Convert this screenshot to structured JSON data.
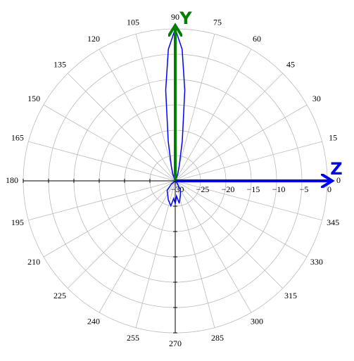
{
  "chart_data": {
    "type": "polar",
    "x": [
      0,
      10,
      20,
      30,
      40,
      50,
      60,
      65,
      70,
      75,
      80,
      84,
      87,
      90,
      93,
      96,
      100,
      105,
      110,
      120,
      140,
      160,
      180,
      200,
      220,
      230,
      240,
      250,
      260,
      265,
      270,
      275,
      280,
      290,
      300,
      310,
      330,
      350,
      360
    ],
    "values": [
      -30,
      -30,
      -30,
      -30,
      -30,
      -30,
      -30,
      -29.5,
      -28.5,
      -27,
      -22,
      -12,
      -4,
      0,
      -4,
      -12,
      -22,
      -27,
      -28.5,
      -30,
      -30,
      -30,
      -30,
      -30,
      -29,
      -27.5,
      -27,
      -26,
      -25,
      -26.5,
      -25.5,
      -27,
      -25.5,
      -27,
      -28,
      -29.5,
      -30,
      -30,
      -30
    ],
    "color": "#0000ff",
    "rlim": [
      -30,
      0
    ],
    "rticks": [
      {
        "value": -30,
        "label": "−30"
      },
      {
        "value": -25,
        "label": "−25"
      },
      {
        "value": -20,
        "label": "−20"
      },
      {
        "value": -15,
        "label": "−15"
      },
      {
        "value": -10,
        "label": "−10"
      },
      {
        "value": -5,
        "label": "−5"
      },
      0
    ],
    "thetaticks": [
      0,
      15,
      30,
      45,
      60,
      75,
      90,
      105,
      120,
      135,
      150,
      165,
      180,
      195,
      210,
      225,
      240,
      255,
      270,
      285,
      300,
      315,
      330,
      345
    ],
    "grid": true,
    "axis_labels": {
      "y": "Y",
      "z": "Z"
    }
  }
}
